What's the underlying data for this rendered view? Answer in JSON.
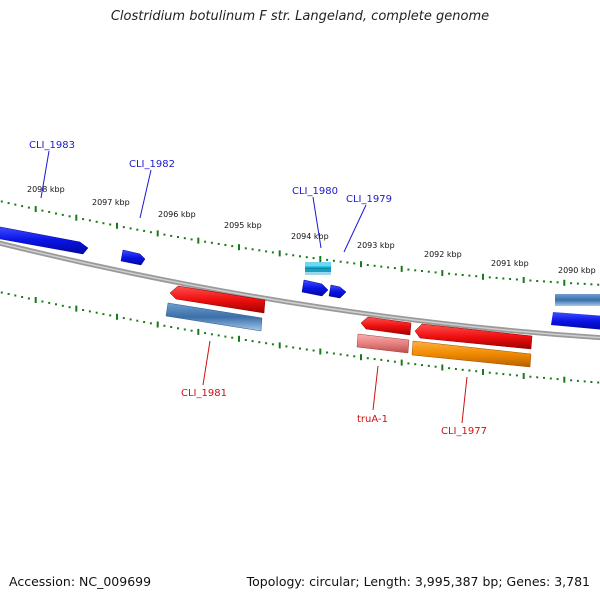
{
  "title": "Clostridium botulinum F str. Langeland, complete genome",
  "footer": {
    "accession": "Accession: NC_009699",
    "summary": "Topology: circular; Length: 3,995,387 bp; Genes: 3,781"
  },
  "ruler_labels": [
    "2098 kbp",
    "2097 kbp",
    "2096 kbp",
    "2095 kbp",
    "2094 kbp",
    "2093 kbp",
    "2092 kbp",
    "2091 kbp",
    "2090 kbp"
  ],
  "gene_labels_forward": [
    "CLI_1983",
    "CLI_1982",
    "CLI_1980",
    "CLI_1979"
  ],
  "gene_labels_reverse": [
    "CLI_1981",
    "truA-1",
    "CLI_1977"
  ],
  "colors": {
    "forward_gene": "#0a14e6",
    "reverse_gene": "#f01010",
    "rna_gene": "#3a6fa8",
    "orange_gene": "#f08a00",
    "pink_gene": "#e88080",
    "cyan_gene": "#19b8d8",
    "ticks": "#1a7a1a",
    "backbone": "#8a8a8a",
    "forward_label": "#1a1ad0",
    "reverse_label": "#d01010"
  }
}
